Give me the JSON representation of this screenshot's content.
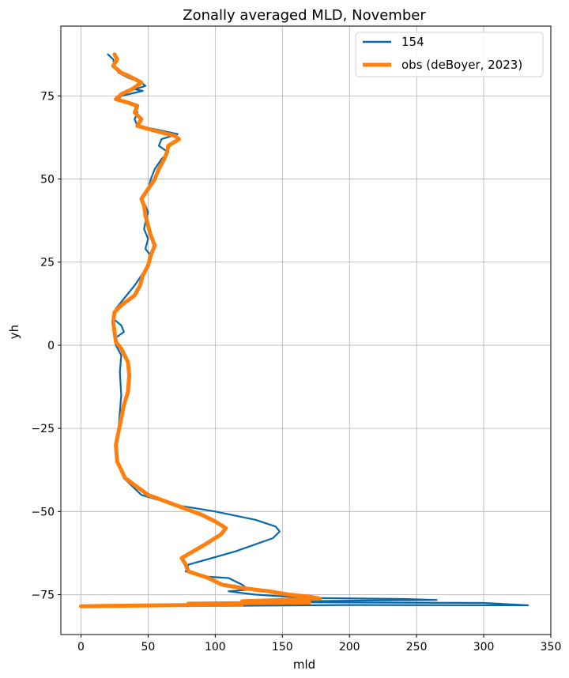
{
  "chart_data": {
    "type": "line",
    "title": "Zonally averaged MLD, November",
    "xlabel": "mld",
    "ylabel": "yh",
    "xlim": [
      -15,
      350
    ],
    "ylim": [
      -87,
      96
    ],
    "xticks": [
      0,
      50,
      100,
      150,
      200,
      250,
      300,
      350
    ],
    "yticks": [
      -75,
      -50,
      -25,
      0,
      25,
      50,
      75
    ],
    "xtick_labels": [
      "0",
      "50",
      "100",
      "150",
      "200",
      "250",
      "300",
      "350"
    ],
    "ytick_labels": [
      "−75",
      "−50",
      "−25",
      "0",
      "25",
      "50",
      "75"
    ],
    "grid": true,
    "legend_position": "top-right",
    "colors": {
      "s154": "#0868ac",
      "obs": "#ff7f0e",
      "grid": "#b0b0b0"
    },
    "series": [
      {
        "name": "154",
        "points": [
          [
            20,
            87.5
          ],
          [
            24,
            86
          ],
          [
            25,
            84
          ],
          [
            28,
            82
          ],
          [
            35,
            80.5
          ],
          [
            45,
            79
          ],
          [
            48,
            78
          ],
          [
            40,
            77
          ],
          [
            46,
            76.5
          ],
          [
            30,
            75
          ],
          [
            28,
            74
          ],
          [
            40,
            72
          ],
          [
            42,
            70
          ],
          [
            40,
            68
          ],
          [
            42,
            66
          ],
          [
            55,
            65
          ],
          [
            72,
            63.5
          ],
          [
            60,
            62
          ],
          [
            58,
            60
          ],
          [
            65,
            58
          ],
          [
            60,
            56
          ],
          [
            55,
            53
          ],
          [
            52,
            50
          ],
          [
            50,
            47
          ],
          [
            45,
            44
          ],
          [
            48,
            42
          ],
          [
            50,
            40
          ],
          [
            48,
            37
          ],
          [
            47,
            35
          ],
          [
            50,
            32
          ],
          [
            48,
            29
          ],
          [
            52,
            27
          ],
          [
            50,
            24
          ],
          [
            45,
            21
          ],
          [
            40,
            18
          ],
          [
            32,
            14
          ],
          [
            26,
            11
          ],
          [
            24,
            8
          ],
          [
            30,
            6
          ],
          [
            32,
            4
          ],
          [
            25,
            2
          ],
          [
            26,
            0
          ],
          [
            30,
            -3
          ],
          [
            29,
            -8
          ],
          [
            30,
            -15
          ],
          [
            29,
            -20
          ],
          [
            28,
            -25
          ],
          [
            26,
            -30
          ],
          [
            27,
            -35
          ],
          [
            32,
            -40
          ],
          [
            45,
            -45
          ],
          [
            70,
            -48
          ],
          [
            100,
            -50
          ],
          [
            130,
            -52.5
          ],
          [
            145,
            -54.5
          ],
          [
            148,
            -56
          ],
          [
            143,
            -58
          ],
          [
            115,
            -62
          ],
          [
            80,
            -66
          ],
          [
            78,
            -68
          ],
          [
            90,
            -69.5
          ],
          [
            110,
            -70
          ],
          [
            120,
            -72
          ],
          [
            125,
            -73.5
          ],
          [
            110,
            -74
          ],
          [
            130,
            -75
          ],
          [
            150,
            -75.5
          ],
          [
            170,
            -76
          ],
          [
            240,
            -76.3
          ],
          [
            265,
            -76.6
          ],
          [
            150,
            -77
          ],
          [
            120,
            -77.2
          ],
          [
            300,
            -77.5
          ],
          [
            333,
            -78.2
          ],
          [
            200,
            -78.1
          ],
          [
            100,
            -78.4
          ],
          [
            0,
            -78.5
          ]
        ]
      },
      {
        "name": "obs (deBoyer, 2023)",
        "points": [
          [
            25,
            87.5
          ],
          [
            27,
            86
          ],
          [
            24,
            84
          ],
          [
            30,
            82
          ],
          [
            38,
            80.5
          ],
          [
            45,
            79
          ],
          [
            38,
            77
          ],
          [
            30,
            75.5
          ],
          [
            26,
            74
          ],
          [
            35,
            73
          ],
          [
            42,
            72
          ],
          [
            40,
            70
          ],
          [
            45,
            68
          ],
          [
            42,
            66
          ],
          [
            55,
            64.5
          ],
          [
            70,
            63
          ],
          [
            73,
            62
          ],
          [
            65,
            60
          ],
          [
            64,
            58
          ],
          [
            62,
            56
          ],
          [
            58,
            53
          ],
          [
            55,
            50
          ],
          [
            50,
            47
          ],
          [
            45,
            44
          ],
          [
            47,
            42
          ],
          [
            48,
            39
          ],
          [
            50,
            36
          ],
          [
            52,
            33
          ],
          [
            55,
            30
          ],
          [
            52,
            27
          ],
          [
            50,
            24
          ],
          [
            46,
            21
          ],
          [
            44,
            18
          ],
          [
            40,
            15
          ],
          [
            30,
            12
          ],
          [
            25,
            10
          ],
          [
            24,
            7
          ],
          [
            25,
            4
          ],
          [
            26,
            1
          ],
          [
            30,
            -1
          ],
          [
            35,
            -5
          ],
          [
            36,
            -9
          ],
          [
            35,
            -14
          ],
          [
            32,
            -18
          ],
          [
            30,
            -22
          ],
          [
            28,
            -26
          ],
          [
            26,
            -30
          ],
          [
            27,
            -35
          ],
          [
            33,
            -40
          ],
          [
            50,
            -45
          ],
          [
            70,
            -48
          ],
          [
            90,
            -51
          ],
          [
            100,
            -53
          ],
          [
            108,
            -55
          ],
          [
            104,
            -57
          ],
          [
            92,
            -60
          ],
          [
            75,
            -64
          ],
          [
            78,
            -66
          ],
          [
            80,
            -68
          ],
          [
            95,
            -70
          ],
          [
            105,
            -72
          ],
          [
            120,
            -73
          ],
          [
            140,
            -74
          ],
          [
            155,
            -75
          ],
          [
            170,
            -75.6
          ],
          [
            178,
            -76.2
          ],
          [
            150,
            -76.6
          ],
          [
            120,
            -77
          ],
          [
            170,
            -77.4
          ],
          [
            80,
            -77.7
          ],
          [
            120,
            -78
          ],
          [
            60,
            -78.2
          ],
          [
            0,
            -78.5
          ]
        ]
      }
    ]
  }
}
